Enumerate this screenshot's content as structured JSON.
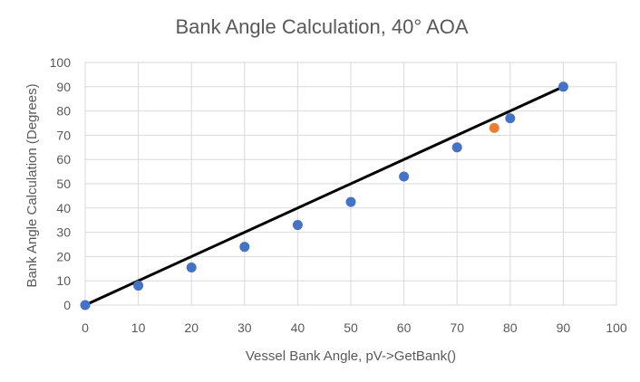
{
  "chart_data": {
    "type": "scatter",
    "title": "Bank Angle Calculation, 40° AOA",
    "xlabel": "Vessel Bank Angle, pV->GetBank()",
    "ylabel": "Bank Angle Calculation (Degrees)",
    "xlim": [
      0,
      100
    ],
    "ylim": [
      0,
      100
    ],
    "x_ticks": [
      0,
      10,
      20,
      30,
      40,
      50,
      60,
      70,
      80,
      90,
      100
    ],
    "y_ticks": [
      0,
      10,
      20,
      30,
      40,
      50,
      60,
      70,
      80,
      90,
      100
    ],
    "grid": true,
    "legend": "none",
    "series": [
      {
        "color": "#4472c4",
        "points": [
          {
            "x": 0,
            "y": 0
          },
          {
            "x": 10,
            "y": 8
          },
          {
            "x": 20,
            "y": 15.5
          },
          {
            "x": 30,
            "y": 24
          },
          {
            "x": 40,
            "y": 33
          },
          {
            "x": 50,
            "y": 42.5
          },
          {
            "x": 60,
            "y": 53
          },
          {
            "x": 70,
            "y": 65
          },
          {
            "x": 80,
            "y": 77
          },
          {
            "x": 90,
            "y": 90
          }
        ]
      },
      {
        "color": "#ed7d31",
        "points": [
          {
            "x": 77,
            "y": 73
          }
        ]
      }
    ],
    "reference_line": {
      "color": "#000000",
      "from": {
        "x": 0,
        "y": 0
      },
      "to": {
        "x": 90,
        "y": 90
      }
    }
  }
}
